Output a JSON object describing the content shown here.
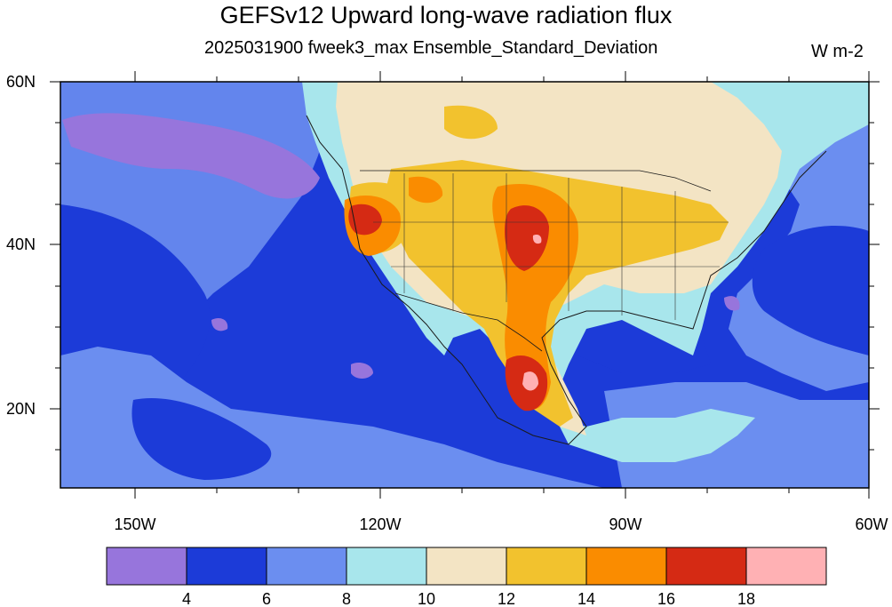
{
  "title": "GEFSv12 Upward long-wave radiation flux",
  "subtitle": "2025031900 fweek3_max Ensemble_Standard_Deviation",
  "units": "W m-2",
  "map": {
    "lon_labels": [
      "150W",
      "120W",
      "90W",
      "60W"
    ],
    "lat_labels": [
      "60N",
      "40N",
      "20N"
    ],
    "extent": {
      "lon_min": -160,
      "lon_max": -60,
      "lat_min": 10,
      "lat_max": 60
    },
    "colors": {
      "ocean_deep": "#1c3bd8",
      "ocean": "#6b8ef0",
      "coast": "#a8e6ec",
      "land_cool": "#f3e4c4",
      "land_warm": "#f2c22e",
      "land_hot": "#fa8c00",
      "land_hotter": "#d52a14",
      "peak": "#ffb1b4",
      "low": "#9775dc"
    }
  },
  "colorbar": {
    "ticks": [
      "4",
      "6",
      "8",
      "10",
      "12",
      "14",
      "16",
      "18"
    ],
    "colors": [
      "#9775dc",
      "#1c3bd8",
      "#6b8ef0",
      "#a8e6ec",
      "#f3e4c4",
      "#f2c22e",
      "#fa8c00",
      "#d52a14",
      "#ffb1b4"
    ]
  }
}
